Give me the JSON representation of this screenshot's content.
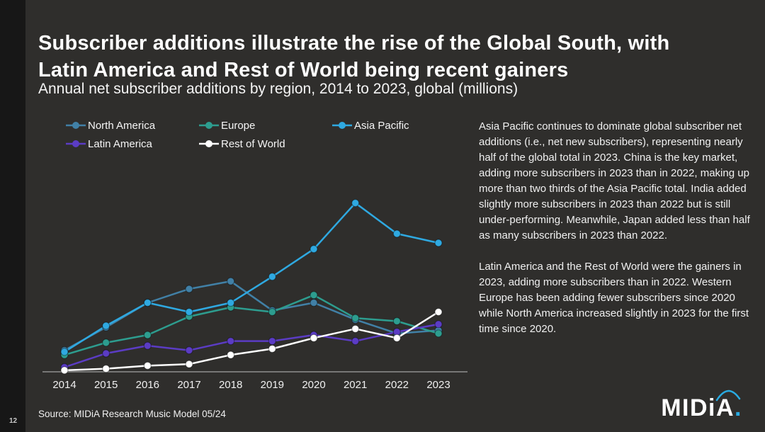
{
  "page": {
    "number": "12"
  },
  "title": {
    "line1": "Subscriber additions illustrate the rise of the Global South, with",
    "line2": "Latin America and Rest of World being recent gainers"
  },
  "subtitle": "Annual net subscriber additions by region, 2014 to 2023, global (millions)",
  "commentary": {
    "p1": "Asia Pacific continues to dominate global subscriber net additions (i.e., net new subscribers), representing nearly half of the global total in 2023. China is the key market, adding more subscribers in 2023 than in 2022, making up more than two thirds of the Asia Pacific total. India added slightly more subscribers in 2023 than 2022 but is still under-performing. Meanwhile, Japan added less than half as many subscribers in 2023 than 2022.",
    "p2": "Latin America and the Rest of World were the gainers in 2023, adding more subscribers than in 2022. Western Europe has been adding fewer subscribers since 2020 while North America increased slightly in 2023 for the first time since 2020."
  },
  "source": "Source: MIDiA Research Music Model 05/24",
  "logo": {
    "text": "MIDiA",
    "dot": ".",
    "accent": "#29abe2"
  },
  "colors": {
    "slide_background": "#2f2e2c",
    "accent_blue": "#29abe2",
    "axis_line": "#8f8f8f"
  },
  "chart_data": {
    "type": "line",
    "title": "Annual net subscriber additions by region, 2014 to 2023, global (millions)",
    "x": [
      2014,
      2015,
      2016,
      2017,
      2018,
      2019,
      2020,
      2021,
      2022,
      2023
    ],
    "series": [
      {
        "name": "North America",
        "color": "#4180a6",
        "values": [
          7,
          14.5,
          22.5,
          27,
          29.5,
          20,
          22.5,
          17,
          12.5,
          13.5
        ]
      },
      {
        "name": "Europe",
        "color": "#2d9d8f",
        "values": [
          5.5,
          9.5,
          12,
          18,
          21,
          19.5,
          25,
          17.5,
          16.5,
          12.5
        ]
      },
      {
        "name": "Asia Pacific",
        "color": "#2fa9e1",
        "values": [
          6.5,
          15,
          22.5,
          19.5,
          22.5,
          31,
          40,
          55,
          45,
          42
        ]
      },
      {
        "name": "Latin America",
        "color": "#5b3cc4",
        "values": [
          1.5,
          6,
          8.5,
          7,
          10,
          10,
          12,
          10,
          13,
          15.5
        ]
      },
      {
        "name": "Rest of World",
        "color": "#ffffff",
        "values": [
          0.5,
          1,
          2,
          2.5,
          5.5,
          7.5,
          11,
          14,
          11,
          19.5
        ]
      }
    ],
    "xlabel": "",
    "ylabel": "",
    "ylim": [
      0,
      60
    ],
    "grid": false,
    "y_axis_labels": false,
    "legend_position": "top-left"
  }
}
